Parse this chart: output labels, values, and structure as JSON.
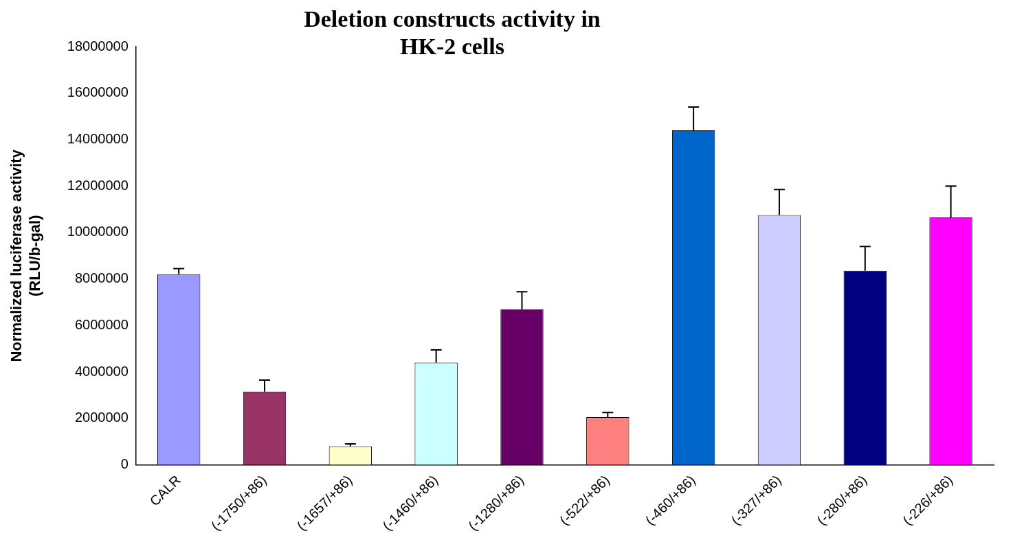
{
  "chart_data": {
    "type": "bar",
    "title": "Deletion constructs activity in HK-2 cells",
    "ylabel": "Normalized luciferase activity\n(RLU/b-gal)",
    "categories": [
      "CALR",
      "(-1750/+86)",
      "(-1657/+86)",
      "(-1460/+86)",
      "(-1280/+86)",
      "(-522/+86)",
      "(-460/+86)",
      "(-327/+86)",
      "(-280/+86)",
      "(-226/+86)"
    ],
    "values": [
      8200000,
      3150000,
      800000,
      4400000,
      6700000,
      2050000,
      14400000,
      10750000,
      8350000,
      10650000
    ],
    "colors": [
      "#9999ff",
      "#993366",
      "#ffffcc",
      "#ccffff",
      "#660066",
      "#ff8080",
      "#0066cc",
      "#ccccff",
      "#000080",
      "#ff00ff"
    ],
    "errors": [
      [
        8200000,
        8450000
      ],
      [
        3150000,
        3650000
      ],
      [
        800000,
        900000
      ],
      [
        4400000,
        4950000
      ],
      [
        6700000,
        7450000
      ],
      [
        2050000,
        2250000
      ],
      [
        14400000,
        15400000
      ],
      [
        10750000,
        11850000
      ],
      [
        8350000,
        9400000
      ],
      [
        10650000,
        12000000
      ]
    ],
    "ylim": [
      0,
      18000000
    ],
    "yticks": [
      0,
      2000000,
      4000000,
      6000000,
      8000000,
      10000000,
      12000000,
      14000000,
      16000000,
      18000000
    ],
    "grid": false,
    "legend": false
  }
}
